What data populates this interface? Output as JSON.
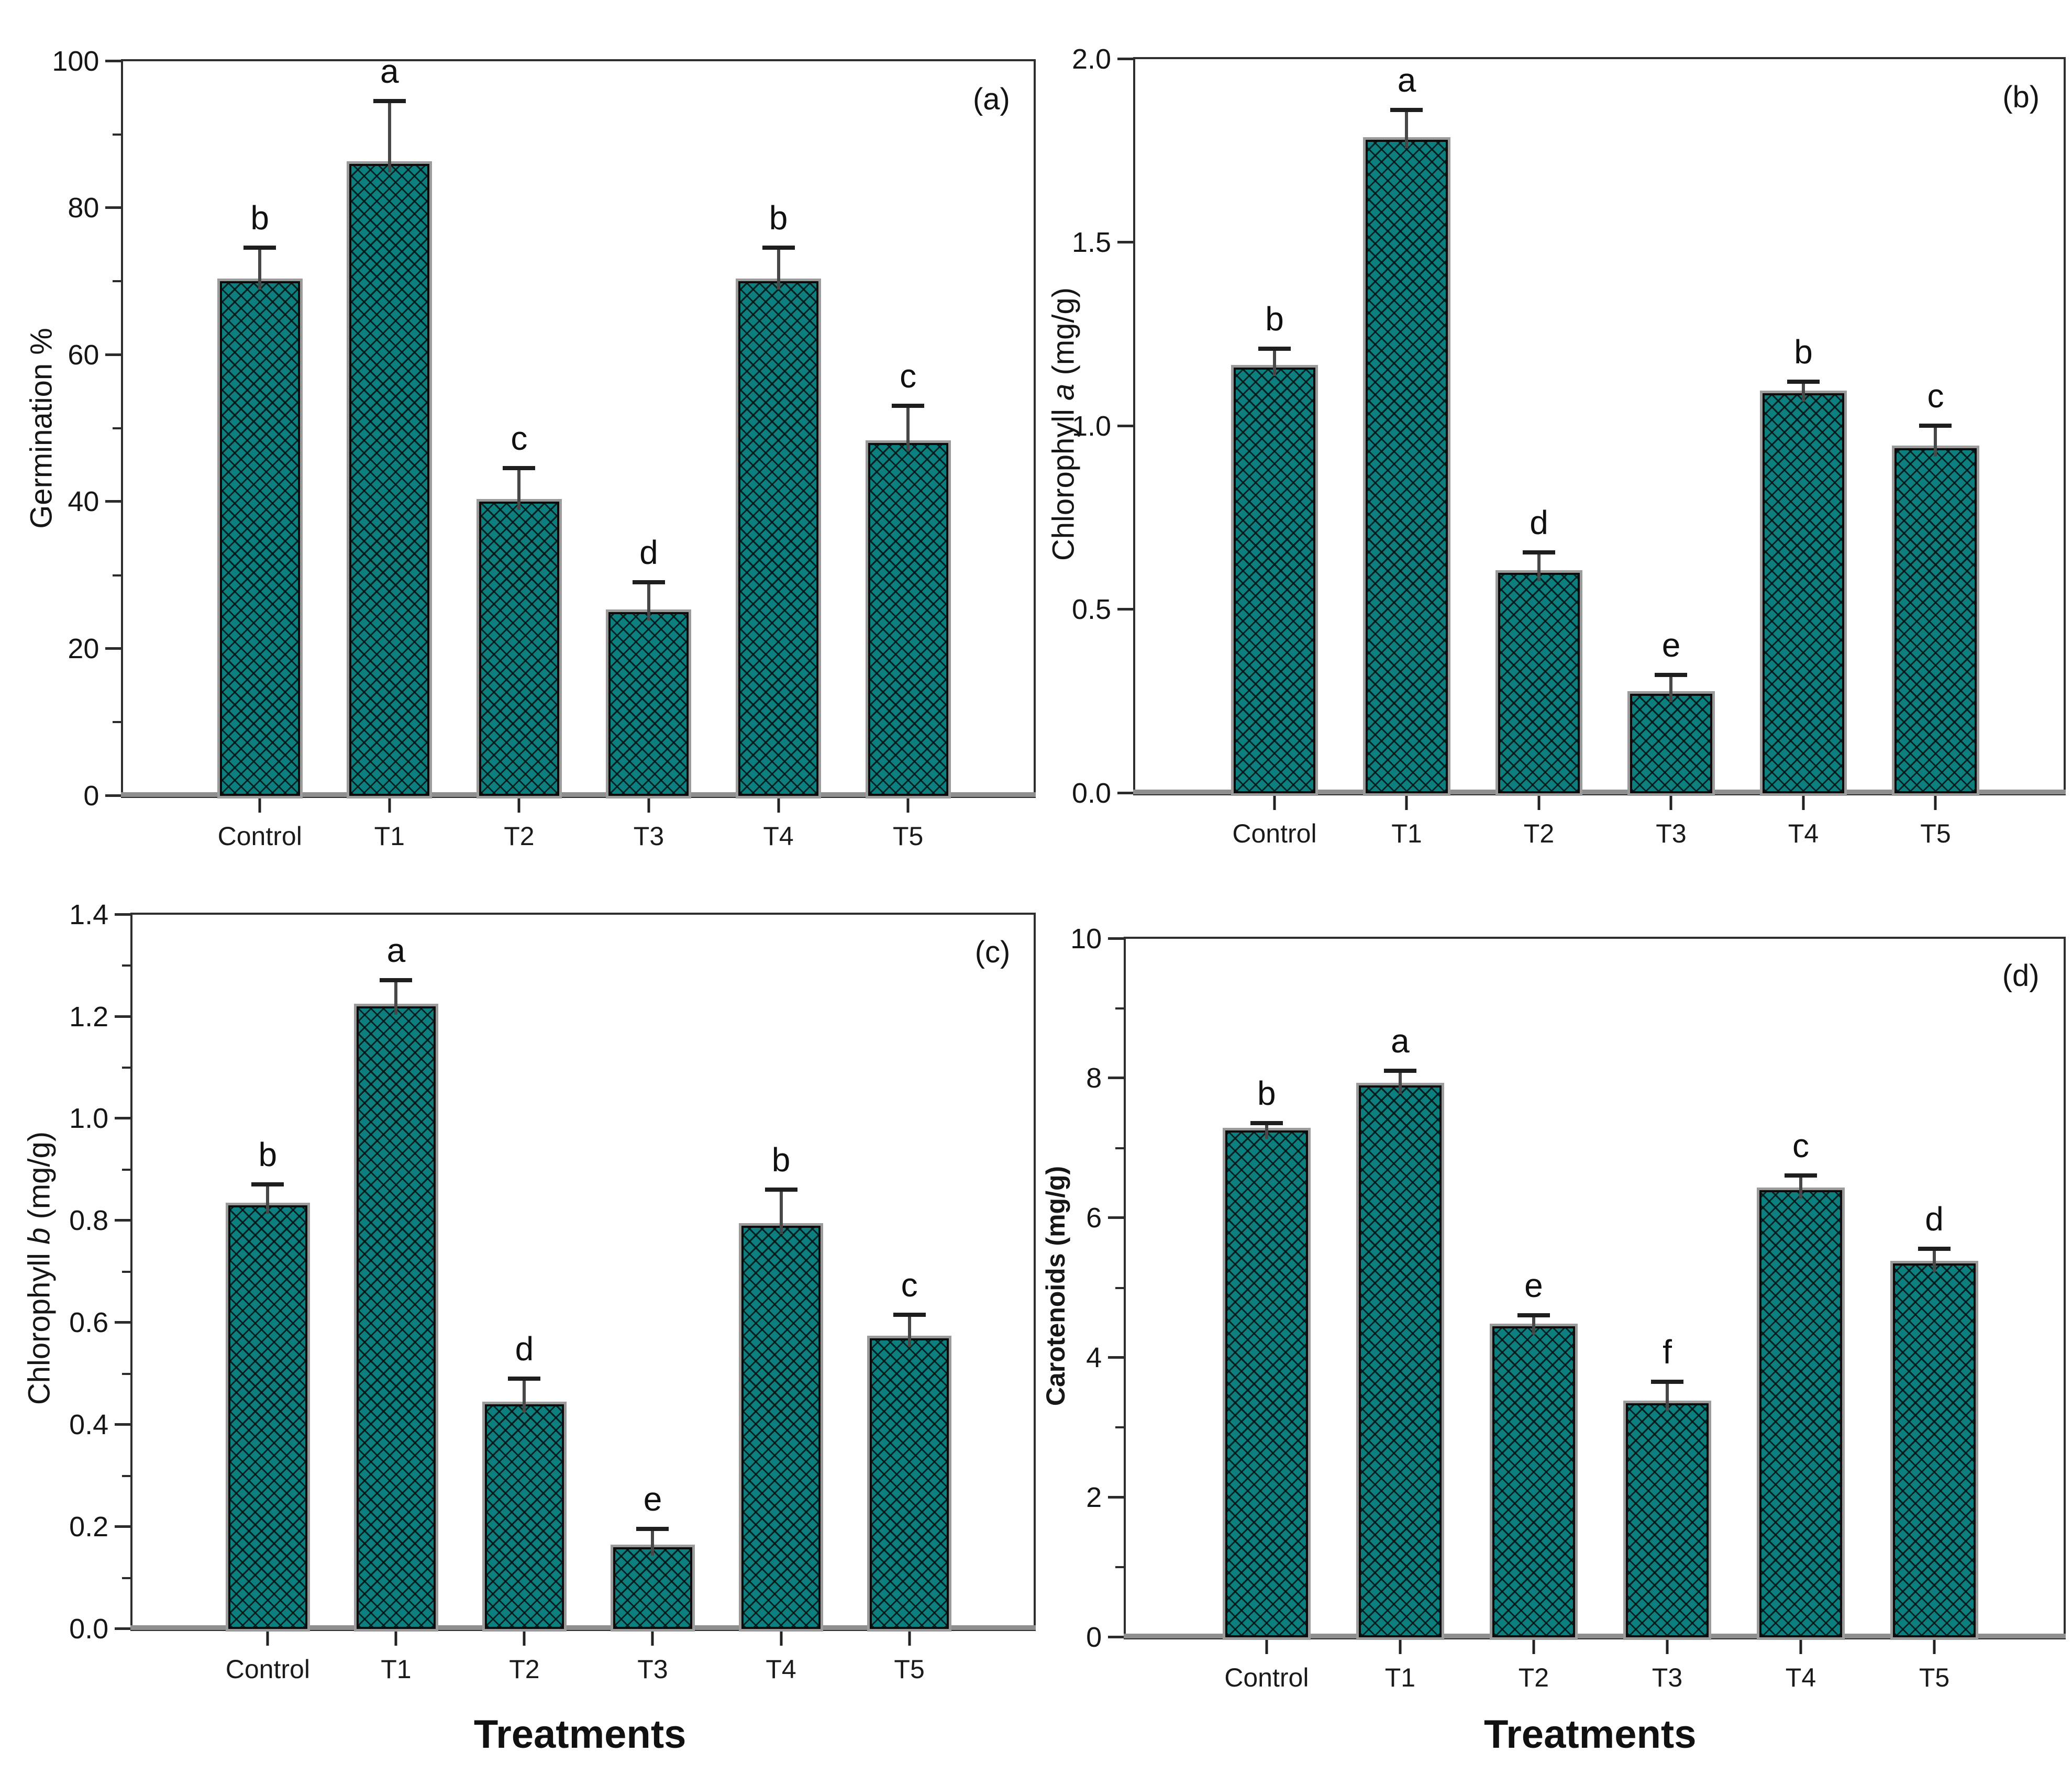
{
  "figure": {
    "description": "Four-panel bar chart figure comparing treatments",
    "x_axis_title": "Treatments",
    "categories": [
      "Control",
      "T1",
      "T2",
      "T3",
      "T4",
      "T5"
    ]
  },
  "colors": {
    "bar_fill": "#0e7f7f",
    "bar_hatch": "#000000",
    "bar_border": "#0b0b0b",
    "bar_shadow": "#9b9b9b",
    "axis": "#2e2e2e",
    "baseline": "#8f8f8f",
    "error_bar": "#484848",
    "text": "#141414"
  },
  "chart_data": [
    {
      "type": "bar",
      "panel_label": "(a)",
      "categories": [
        "Control",
        "T1",
        "T2",
        "T3",
        "T4",
        "T5"
      ],
      "values": [
        70,
        86,
        40,
        25,
        70,
        48
      ],
      "errors": [
        4.5,
        8.5,
        4.5,
        4,
        4.5,
        5
      ],
      "sig_letters": [
        "b",
        "a",
        "c",
        "d",
        "b",
        "c"
      ],
      "ylabel": "Germination %",
      "ylabel_parts": [
        {
          "text": "Germination %"
        }
      ],
      "xlabel": null,
      "ylim": [
        0,
        100
      ],
      "ytick_step": 20,
      "minor_tick_step": 10,
      "tick_decimals": 0,
      "grid": false,
      "legend": null
    },
    {
      "type": "bar",
      "panel_label": "(b)",
      "categories": [
        "Control",
        "T1",
        "T2",
        "T3",
        "T4",
        "T5"
      ],
      "values": [
        1.16,
        1.78,
        0.6,
        0.27,
        1.09,
        0.94
      ],
      "errors": [
        0.05,
        0.08,
        0.055,
        0.05,
        0.03,
        0.06
      ],
      "sig_letters": [
        "b",
        "a",
        "d",
        "e",
        "b",
        "c"
      ],
      "ylabel": "Chlorophyll a (mg/g)",
      "ylabel_parts": [
        {
          "text": "Chlorophyll "
        },
        {
          "text": "a",
          "italic": true
        },
        {
          "text": " (mg/g)"
        }
      ],
      "xlabel": null,
      "ylim": [
        0,
        2.0
      ],
      "ytick_step": 0.5,
      "minor_tick_step": null,
      "tick_decimals": 1,
      "grid": false,
      "legend": null
    },
    {
      "type": "bar",
      "panel_label": "(c)",
      "categories": [
        "Control",
        "T1",
        "T2",
        "T3",
        "T4",
        "T5"
      ],
      "values": [
        0.83,
        1.22,
        0.44,
        0.16,
        0.79,
        0.57
      ],
      "errors": [
        0.04,
        0.05,
        0.05,
        0.035,
        0.07,
        0.045
      ],
      "sig_letters": [
        "b",
        "a",
        "d",
        "e",
        "b",
        "c"
      ],
      "ylabel": "Chlorophyll b (mg/g)",
      "ylabel_parts": [
        {
          "text": "Chlorophyll "
        },
        {
          "text": "b",
          "italic": true
        },
        {
          "text": " (mg/g)"
        }
      ],
      "xlabel": "Treatments",
      "ylim": [
        0,
        1.4
      ],
      "ytick_step": 0.2,
      "minor_tick_step": 0.1,
      "tick_decimals": 1,
      "grid": false,
      "legend": null
    },
    {
      "type": "bar",
      "panel_label": "(d)",
      "categories": [
        "Control",
        "T1",
        "T2",
        "T3",
        "T4",
        "T5"
      ],
      "values": [
        7.25,
        7.9,
        4.45,
        3.35,
        6.4,
        5.35
      ],
      "errors": [
        0.1,
        0.2,
        0.15,
        0.3,
        0.2,
        0.2
      ],
      "sig_letters": [
        "b",
        "a",
        "e",
        "f",
        "c",
        "d"
      ],
      "ylabel": "Carotenoids  (mg/g)",
      "ylabel_parts": [
        {
          "text": "Carotenoids  (mg/g)"
        }
      ],
      "ylabel_bold": true,
      "xlabel": "Treatments",
      "ylim": [
        0,
        10
      ],
      "ytick_step": 2,
      "minor_tick_step": 1,
      "tick_decimals": 0,
      "grid": false,
      "legend": null
    }
  ]
}
